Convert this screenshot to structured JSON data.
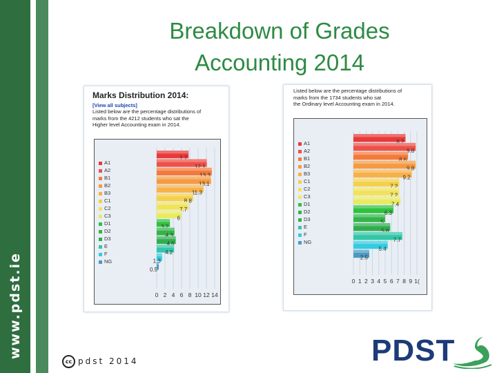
{
  "side_text": "www.pdst.ie",
  "title_line1": "Breakdown of Grades",
  "title_line2": "Accounting 2014",
  "left_panel": {
    "heading": "Marks Distribution 2014:",
    "link": "[View all subjects]",
    "text_lines": [
      "Listed below are the percentage distributions of",
      "marks from the 4212 students who sat the",
      "Higher level Accounting exam in 2014."
    ]
  },
  "right_panel": {
    "text_lines": [
      "Listed below are the percentage distributions of",
      "marks from the 1734 students who sat",
      "the Ordinary level Accounting exam in 2014."
    ]
  },
  "footer_cc": "cc",
  "footer_text": "pdst 2014",
  "logo_text": "PDST",
  "chart_data": [
    {
      "type": "bar",
      "orientation": "horizontal",
      "categories": [
        "A1",
        "A2",
        "B1",
        "B2",
        "B3",
        "C1",
        "C2",
        "C3",
        "D1",
        "D2",
        "D3",
        "E",
        "F",
        "NG"
      ],
      "values": [
        7.7,
        12.1,
        13.3,
        13.1,
        11.3,
        8.8,
        7.7,
        6,
        3.2,
        4.3,
        4.6,
        4.2,
        1.3,
        0.5
      ],
      "colors": [
        "#e83a3a",
        "#ee5148",
        "#f47a3a",
        "#f69a42",
        "#f7b14a",
        "#f5d04a",
        "#f2e25a",
        "#e9ea62",
        "#2fc23f",
        "#32b548",
        "#2fae4e",
        "#34c6a8",
        "#33cce0",
        "#4a9ac2"
      ],
      "xticks": [
        "0",
        "2",
        "4",
        "6",
        "8",
        "10",
        "12",
        "14"
      ],
      "xlim": [
        0,
        14
      ],
      "legend": "left"
    },
    {
      "type": "bar",
      "orientation": "horizontal",
      "categories": [
        "A1",
        "A2",
        "B1",
        "B2",
        "B3",
        "C1",
        "C2",
        "C3",
        "D1",
        "D2",
        "D3",
        "E",
        "F",
        "NG"
      ],
      "values": [
        8.2,
        9.8,
        8.6,
        9.8,
        9.2,
        7.2,
        7.2,
        7.4,
        6.3,
        5,
        5.8,
        7.7,
        5.4,
        2.5
      ],
      "colors": [
        "#e83a3a",
        "#ee5148",
        "#f47a3a",
        "#f69a42",
        "#f7b14a",
        "#f5d04a",
        "#f2e25a",
        "#e9ea62",
        "#2fc23f",
        "#32b548",
        "#2fae4e",
        "#34c6a8",
        "#33cce0",
        "#4a9ac2"
      ],
      "xticks": [
        "0",
        "1",
        "2",
        "3",
        "4",
        "5",
        "6",
        "7",
        "8",
        "9",
        "1("
      ],
      "xlim": [
        0,
        10
      ],
      "legend": "left"
    }
  ]
}
